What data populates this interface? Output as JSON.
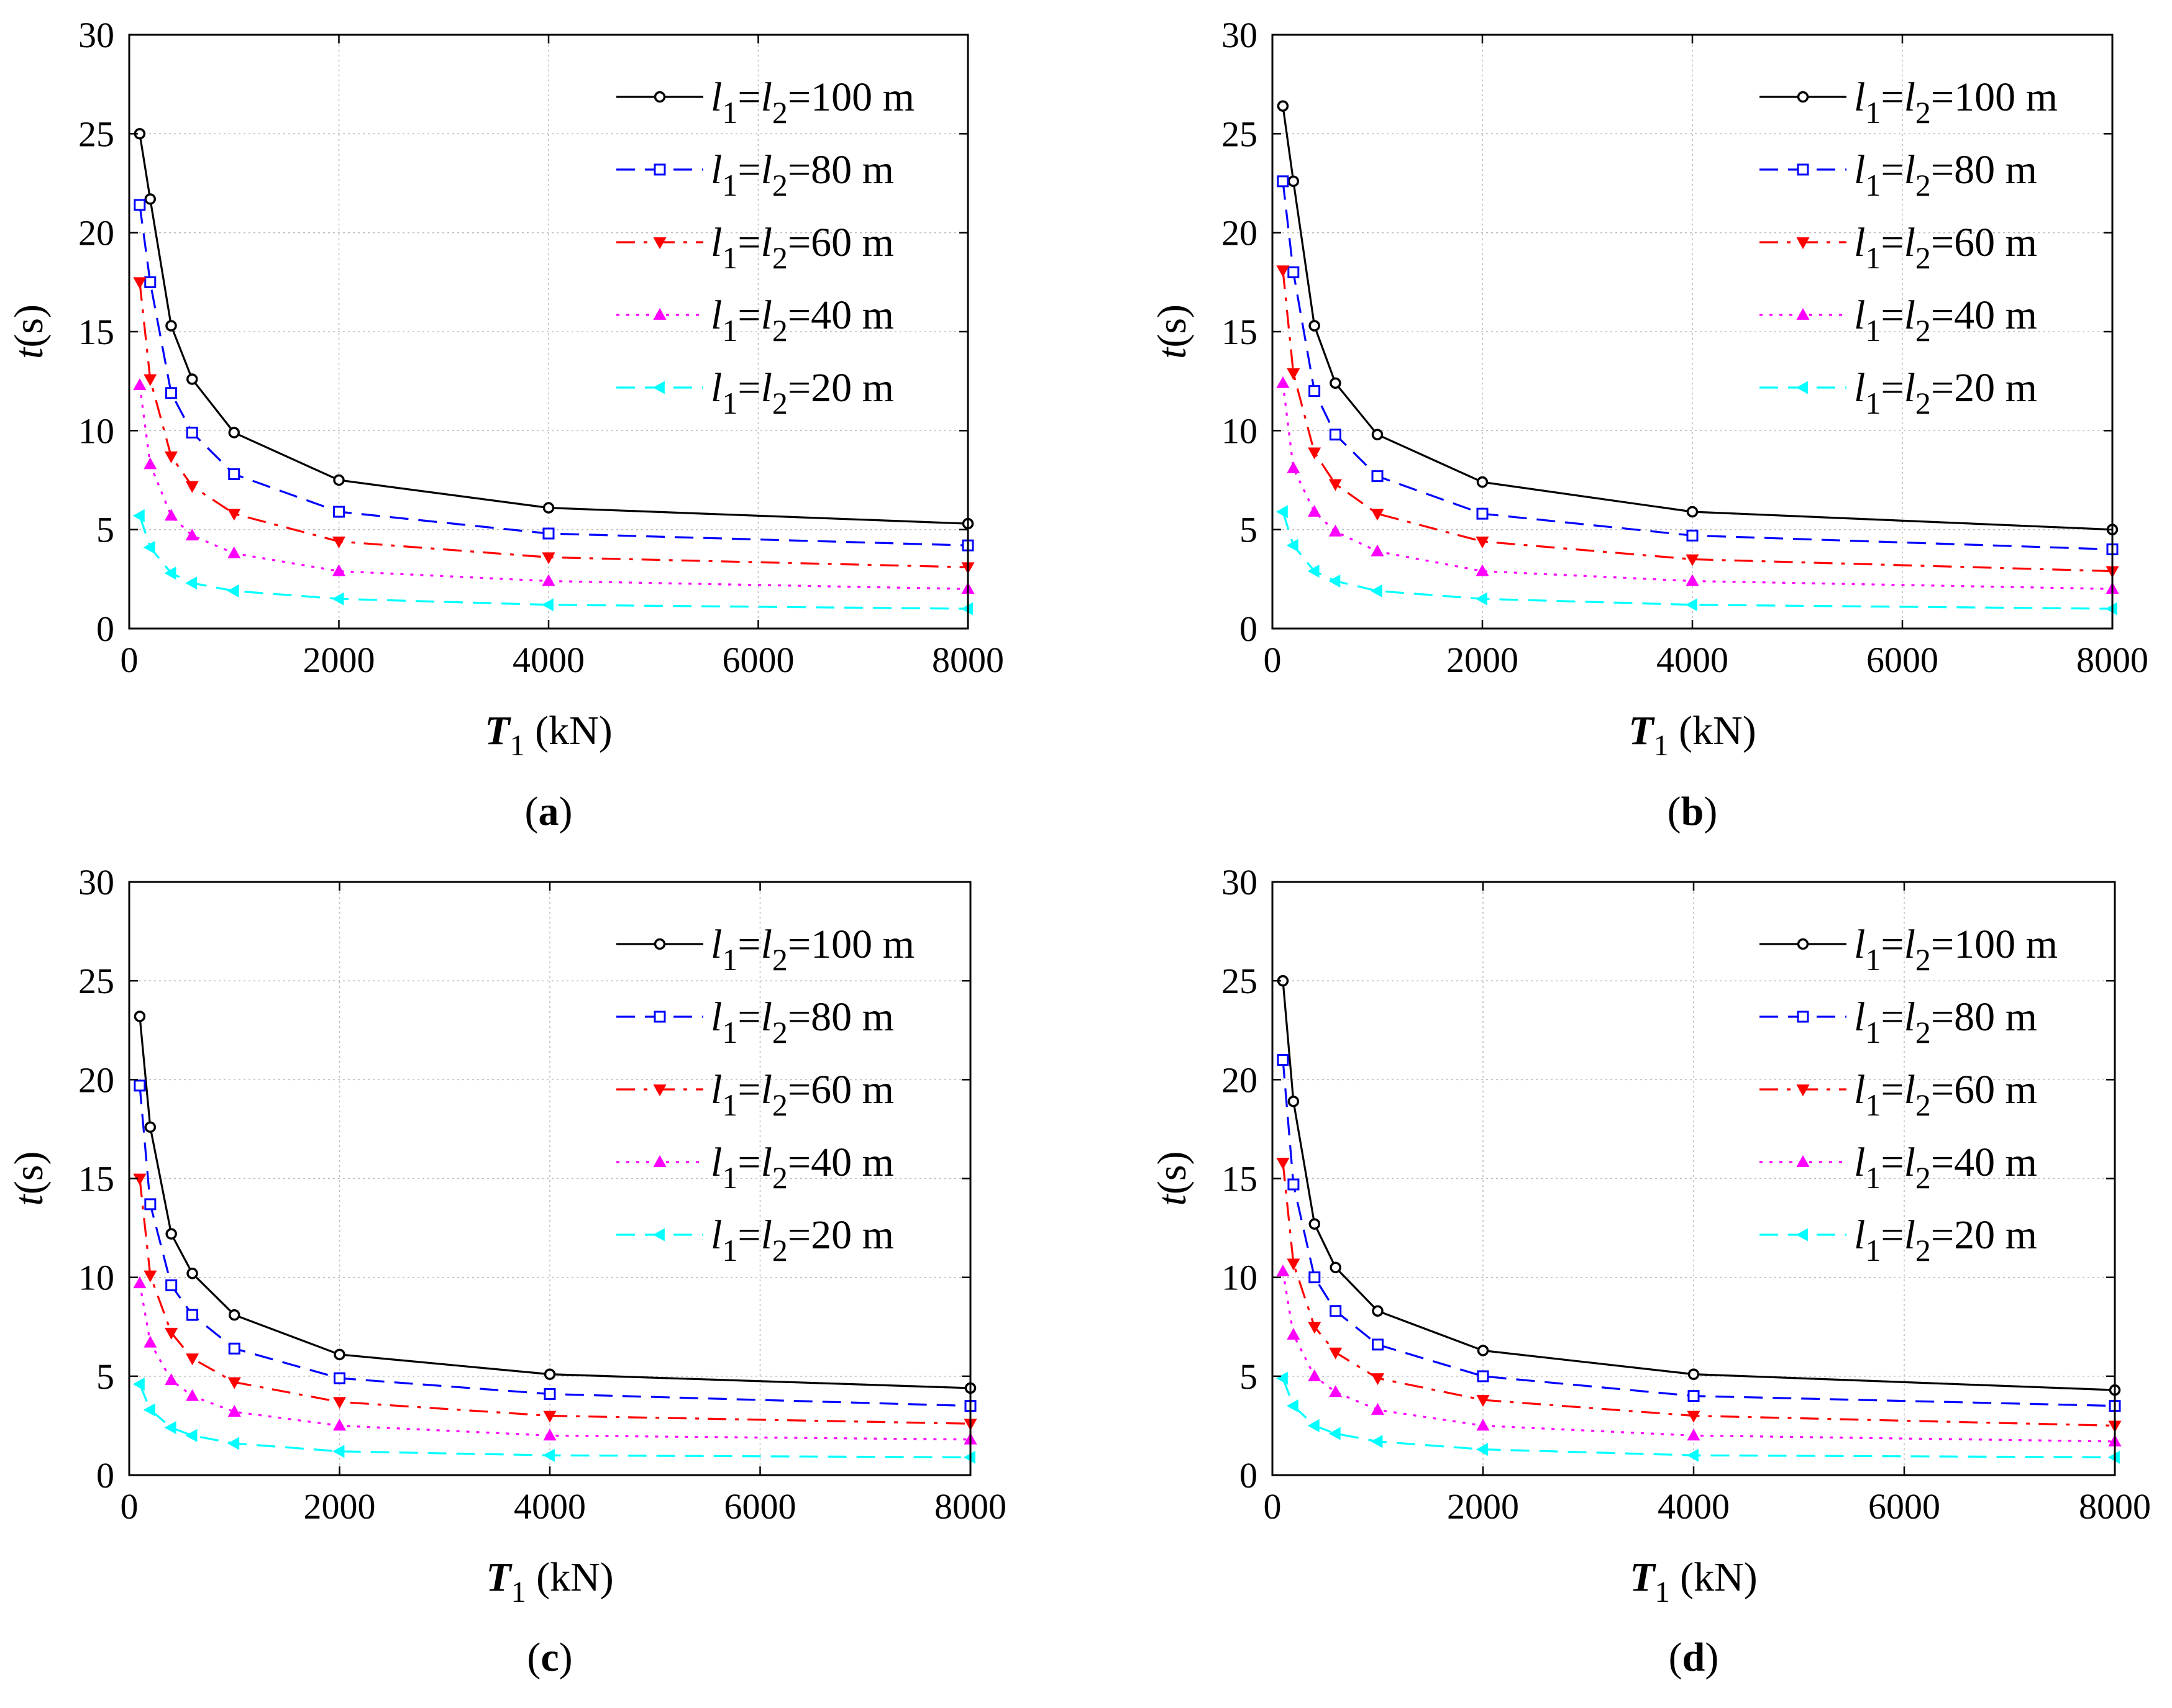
{
  "chart_data": [
    {
      "id": "a",
      "type": "line",
      "caption_letter": "a",
      "xlabel_main": "T",
      "xlabel_sub": "1",
      "xlabel_unit": " (kN)",
      "ylabel_main": "t",
      "ylabel_unit": "(s)",
      "xlim": [
        0,
        8000
      ],
      "ylim": [
        0,
        30
      ],
      "xticks": [
        0,
        2000,
        4000,
        6000,
        8000
      ],
      "yticks": [
        0,
        5,
        10,
        15,
        20,
        25,
        30
      ],
      "grid": true,
      "legend_position": "top-right",
      "x": [
        100,
        200,
        400,
        600,
        1000,
        2000,
        4000,
        8000
      ],
      "series": [
        {
          "name_var1": "l",
          "sub1": "1",
          "name_var2": "l",
          "sub2": "2",
          "name_value": "=100 m",
          "color": "#000000",
          "dash": "solid",
          "marker": "circle",
          "values": [
            25.0,
            21.7,
            15.3,
            12.6,
            9.9,
            7.5,
            6.1,
            5.3
          ]
        },
        {
          "name_var1": "l",
          "sub1": "1",
          "name_var2": "l",
          "sub2": "2",
          "name_value": "=80 m",
          "color": "#0000ff",
          "dash": "dashed",
          "marker": "square",
          "values": [
            21.4,
            17.5,
            11.9,
            9.9,
            7.8,
            5.9,
            4.8,
            4.2
          ]
        },
        {
          "name_var1": "l",
          "sub1": "1",
          "name_var2": "l",
          "sub2": "2",
          "name_value": "=60 m",
          "color": "#ff0000",
          "dash": "dashdot",
          "marker": "triangle-down",
          "values": [
            17.5,
            12.6,
            8.7,
            7.2,
            5.8,
            4.4,
            3.6,
            3.1
          ]
        },
        {
          "name_var1": "l",
          "sub1": "1",
          "name_var2": "l",
          "sub2": "2",
          "name_value": "=40 m",
          "color": "#ff00ff",
          "dash": "dotted",
          "marker": "triangle-up",
          "values": [
            12.3,
            8.3,
            5.7,
            4.7,
            3.8,
            2.9,
            2.4,
            2.0
          ]
        },
        {
          "name_var1": "l",
          "sub1": "1",
          "name_var2": "l",
          "sub2": "2",
          "name_value": "=20 m",
          "color": "#00ffff",
          "dash": "dashed",
          "marker": "triangle-left",
          "values": [
            5.7,
            4.1,
            2.8,
            2.3,
            1.9,
            1.5,
            1.2,
            1.0
          ]
        }
      ]
    },
    {
      "id": "b",
      "type": "line",
      "caption_letter": "b",
      "xlabel_main": "T",
      "xlabel_sub": "1",
      "xlabel_unit": " (kN)",
      "ylabel_main": "t",
      "ylabel_unit": "(s)",
      "xlim": [
        0,
        8000
      ],
      "ylim": [
        0,
        30
      ],
      "xticks": [
        0,
        2000,
        4000,
        6000,
        8000
      ],
      "yticks": [
        0,
        5,
        10,
        15,
        20,
        25,
        30
      ],
      "grid": true,
      "legend_position": "top-right",
      "x": [
        100,
        200,
        400,
        600,
        1000,
        2000,
        4000,
        8000
      ],
      "series": [
        {
          "name_var1": "l",
          "sub1": "1",
          "name_var2": "l",
          "sub2": "2",
          "name_value": "=100 m",
          "color": "#000000",
          "dash": "solid",
          "marker": "circle",
          "values": [
            26.4,
            22.6,
            15.3,
            12.4,
            9.8,
            7.4,
            5.9,
            5.0
          ]
        },
        {
          "name_var1": "l",
          "sub1": "1",
          "name_var2": "l",
          "sub2": "2",
          "name_value": "=80 m",
          "color": "#0000ff",
          "dash": "dashed",
          "marker": "square",
          "values": [
            22.6,
            18.0,
            12.0,
            9.8,
            7.7,
            5.8,
            4.7,
            4.0
          ]
        },
        {
          "name_var1": "l",
          "sub1": "1",
          "name_var2": "l",
          "sub2": "2",
          "name_value": "=60 m",
          "color": "#ff0000",
          "dash": "dashdot",
          "marker": "triangle-down",
          "values": [
            18.1,
            12.9,
            8.9,
            7.3,
            5.8,
            4.4,
            3.5,
            2.9
          ]
        },
        {
          "name_var1": "l",
          "sub1": "1",
          "name_var2": "l",
          "sub2": "2",
          "name_value": "=40 m",
          "color": "#ff00ff",
          "dash": "dotted",
          "marker": "triangle-up",
          "values": [
            12.4,
            8.1,
            5.9,
            4.9,
            3.9,
            2.9,
            2.4,
            2.0
          ]
        },
        {
          "name_var1": "l",
          "sub1": "1",
          "name_var2": "l",
          "sub2": "2",
          "name_value": "=20 m",
          "color": "#00ffff",
          "dash": "dashed",
          "marker": "triangle-left",
          "values": [
            5.9,
            4.2,
            2.9,
            2.4,
            1.9,
            1.5,
            1.2,
            1.0
          ]
        }
      ]
    },
    {
      "id": "c",
      "type": "line",
      "caption_letter": "c",
      "xlabel_main": "T",
      "xlabel_sub": "1",
      "xlabel_unit": " (kN)",
      "ylabel_main": "t",
      "ylabel_unit": "(s)",
      "xlim": [
        0,
        8000
      ],
      "ylim": [
        0,
        30
      ],
      "xticks": [
        0,
        2000,
        4000,
        6000,
        8000
      ],
      "yticks": [
        0,
        5,
        10,
        15,
        20,
        25,
        30
      ],
      "grid": true,
      "legend_position": "top-right",
      "x": [
        100,
        200,
        400,
        600,
        1000,
        2000,
        4000,
        8000
      ],
      "series": [
        {
          "name_var1": "l",
          "sub1": "1",
          "name_var2": "l",
          "sub2": "2",
          "name_value": "=100 m",
          "color": "#000000",
          "dash": "solid",
          "marker": "circle",
          "values": [
            23.2,
            17.6,
            12.2,
            10.2,
            8.1,
            6.1,
            5.1,
            4.4
          ]
        },
        {
          "name_var1": "l",
          "sub1": "1",
          "name_var2": "l",
          "sub2": "2",
          "name_value": "=80 m",
          "color": "#0000ff",
          "dash": "dashed",
          "marker": "square",
          "values": [
            19.7,
            13.7,
            9.6,
            8.1,
            6.4,
            4.9,
            4.1,
            3.5
          ]
        },
        {
          "name_var1": "l",
          "sub1": "1",
          "name_var2": "l",
          "sub2": "2",
          "name_value": "=60 m",
          "color": "#ff0000",
          "dash": "dashdot",
          "marker": "triangle-down",
          "values": [
            15.0,
            10.1,
            7.2,
            5.9,
            4.7,
            3.7,
            3.0,
            2.6
          ]
        },
        {
          "name_var1": "l",
          "sub1": "1",
          "name_var2": "l",
          "sub2": "2",
          "name_value": "=40 m",
          "color": "#ff00ff",
          "dash": "dotted",
          "marker": "triangle-up",
          "values": [
            9.7,
            6.7,
            4.8,
            4.0,
            3.2,
            2.5,
            2.0,
            1.8
          ]
        },
        {
          "name_var1": "l",
          "sub1": "1",
          "name_var2": "l",
          "sub2": "2",
          "name_value": "=20 m",
          "color": "#00ffff",
          "dash": "dashed",
          "marker": "triangle-left",
          "values": [
            4.6,
            3.3,
            2.4,
            2.0,
            1.6,
            1.2,
            1.0,
            0.9
          ]
        }
      ]
    },
    {
      "id": "d",
      "type": "line",
      "caption_letter": "d",
      "xlabel_main": "T",
      "xlabel_sub": "1",
      "xlabel_unit": " (kN)",
      "ylabel_main": "t",
      "ylabel_unit": "(s)",
      "xlim": [
        0,
        8000
      ],
      "ylim": [
        0,
        30
      ],
      "xticks": [
        0,
        2000,
        4000,
        6000,
        8000
      ],
      "yticks": [
        0,
        5,
        10,
        15,
        20,
        25,
        30
      ],
      "grid": true,
      "legend_position": "top-right",
      "x": [
        100,
        200,
        400,
        600,
        1000,
        2000,
        4000,
        8000
      ],
      "series": [
        {
          "name_var1": "l",
          "sub1": "1",
          "name_var2": "l",
          "sub2": "2",
          "name_value": "=100 m",
          "color": "#000000",
          "dash": "solid",
          "marker": "circle",
          "values": [
            25.0,
            18.9,
            12.7,
            10.5,
            8.3,
            6.3,
            5.1,
            4.3
          ]
        },
        {
          "name_var1": "l",
          "sub1": "1",
          "name_var2": "l",
          "sub2": "2",
          "name_value": "=80 m",
          "color": "#0000ff",
          "dash": "dashed",
          "marker": "square",
          "values": [
            21.0,
            14.7,
            10.0,
            8.3,
            6.6,
            5.0,
            4.0,
            3.5
          ]
        },
        {
          "name_var1": "l",
          "sub1": "1",
          "name_var2": "l",
          "sub2": "2",
          "name_value": "=60 m",
          "color": "#ff0000",
          "dash": "dashdot",
          "marker": "triangle-down",
          "values": [
            15.8,
            10.7,
            7.5,
            6.2,
            4.9,
            3.8,
            3.0,
            2.5
          ]
        },
        {
          "name_var1": "l",
          "sub1": "1",
          "name_var2": "l",
          "sub2": "2",
          "name_value": "=40 m",
          "color": "#ff00ff",
          "dash": "dotted",
          "marker": "triangle-up",
          "values": [
            10.3,
            7.1,
            5.0,
            4.2,
            3.3,
            2.5,
            2.0,
            1.7
          ]
        },
        {
          "name_var1": "l",
          "sub1": "1",
          "name_var2": "l",
          "sub2": "2",
          "name_value": "=20 m",
          "color": "#00ffff",
          "dash": "dashed",
          "marker": "triangle-left",
          "values": [
            4.9,
            3.5,
            2.5,
            2.1,
            1.7,
            1.3,
            1.0,
            0.9
          ]
        }
      ]
    }
  ]
}
